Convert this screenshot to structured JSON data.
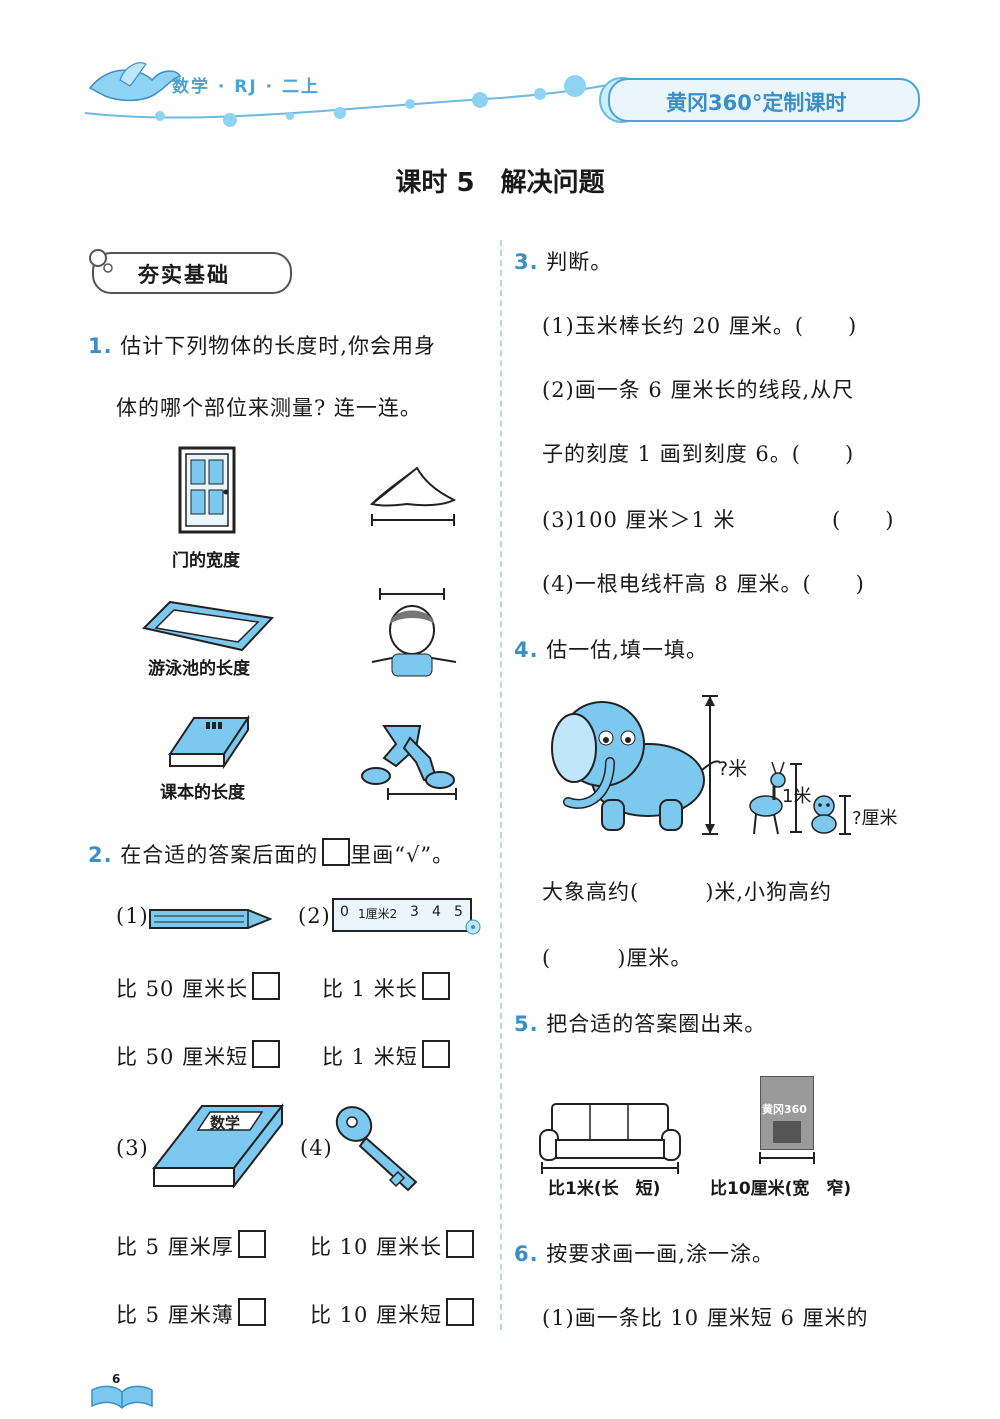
{
  "header": {
    "subject": "数学 · RJ · 二上",
    "brand": "黄冈360°定制课时"
  },
  "title": "课时 5　解决问题",
  "section": "夯实基础",
  "q1": {
    "num": "1.",
    "line1": "估计下列物体的长度时,你会用身",
    "line2": "体的哪个部位来测量? 连一连。",
    "labels": [
      "门的宽度",
      "游泳池的长度",
      "课本的长度"
    ]
  },
  "q2": {
    "num": "2.",
    "text": "在合适的答案后面的",
    "text2": "里画“√”。",
    "i1": "(1)",
    "i2": "(2)",
    "i3": "(3)",
    "i4": "(4)",
    "ruler_text": "1厘米2",
    "ruler_nums": [
      "0",
      "3",
      "4",
      "5"
    ],
    "book_text": "数学",
    "opts": [
      "比 50 厘米长",
      "比 1 米长",
      "比 50 厘米短",
      "比 1 米短",
      "比 5 厘米厚",
      "比 10 厘米长",
      "比 5 厘米薄",
      "比 10 厘米短"
    ]
  },
  "q3": {
    "num": "3.",
    "text": "判断。",
    "l1": "(1)玉米棒长约 20 厘米。(　　)",
    "l2": "(2)画一条 6 厘米长的线段,从尺",
    "l3": "子的刻度 1 画到刻度 6。(　　)",
    "l4": "(3)100 厘米＞1 米",
    "l4b": "(　　)",
    "l5": "(4)一根电线杆高 8 厘米。(　　)"
  },
  "q4": {
    "num": "4.",
    "text": "估一估,填一填。",
    "lab_elephant": "?米",
    "lab_deer": "1米",
    "lab_dog": "?厘米",
    "ans1": "大象高约(　　　)米,小狗高约",
    "ans2": "(　　　)厘米。"
  },
  "q5": {
    "num": "5.",
    "text": "把合适的答案圈出来。",
    "book_brand": "黄冈360",
    "c1": "比1米(长　短)",
    "c2": "比10厘米(宽　窄)"
  },
  "q6": {
    "num": "6.",
    "text": "按要求画一画,涂一涂。",
    "l1": "(1)画一条比 10 厘米短 6 厘米的"
  },
  "page_number": "6",
  "colors": {
    "accent": "#4aa3d6",
    "fill": "#7cc8ef",
    "line": "#222222"
  }
}
